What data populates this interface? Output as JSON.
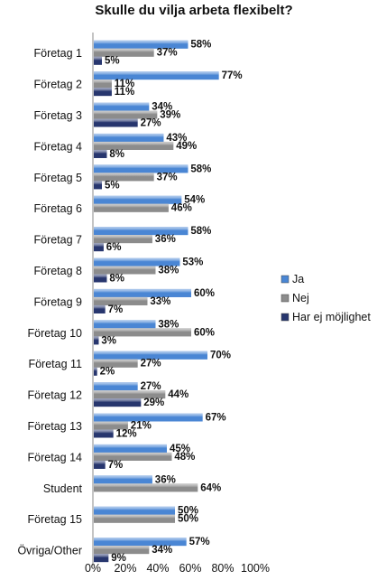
{
  "chart_data": {
    "type": "bar",
    "orientation": "horizontal",
    "title": "Skulle du vilja arbeta flexibelt?",
    "categories": [
      "Företag 1",
      "Företag 2",
      "Företag 3",
      "Företag 4",
      "Företag 5",
      "Företag 6",
      "Företag 7",
      "Företag 8",
      "Företag 9",
      "Företag 10",
      "Företag 11",
      "Företag 12",
      "Företag 13",
      "Företag 14",
      "Student",
      "Företag 15",
      "Övriga/Other"
    ],
    "series": [
      {
        "name": "Ja",
        "color": "#4a86d4",
        "values": [
          58,
          77,
          34,
          43,
          58,
          54,
          58,
          53,
          60,
          38,
          70,
          27,
          67,
          45,
          36,
          50,
          57
        ]
      },
      {
        "name": "Nej",
        "color": "#8c8c8c",
        "values": [
          37,
          11,
          39,
          49,
          37,
          46,
          36,
          38,
          33,
          60,
          27,
          44,
          21,
          48,
          64,
          50,
          34
        ]
      },
      {
        "name": "Har ej möjlighet",
        "color": "#27366e",
        "values": [
          5,
          11,
          27,
          8,
          5,
          null,
          6,
          8,
          7,
          3,
          2,
          29,
          12,
          7,
          null,
          null,
          9
        ]
      }
    ],
    "x_ticks": [
      "0%",
      "20%",
      "40%",
      "60%",
      "80%",
      "100%"
    ],
    "xlim": [
      0,
      100
    ],
    "grid": false,
    "legend_position": "right"
  }
}
